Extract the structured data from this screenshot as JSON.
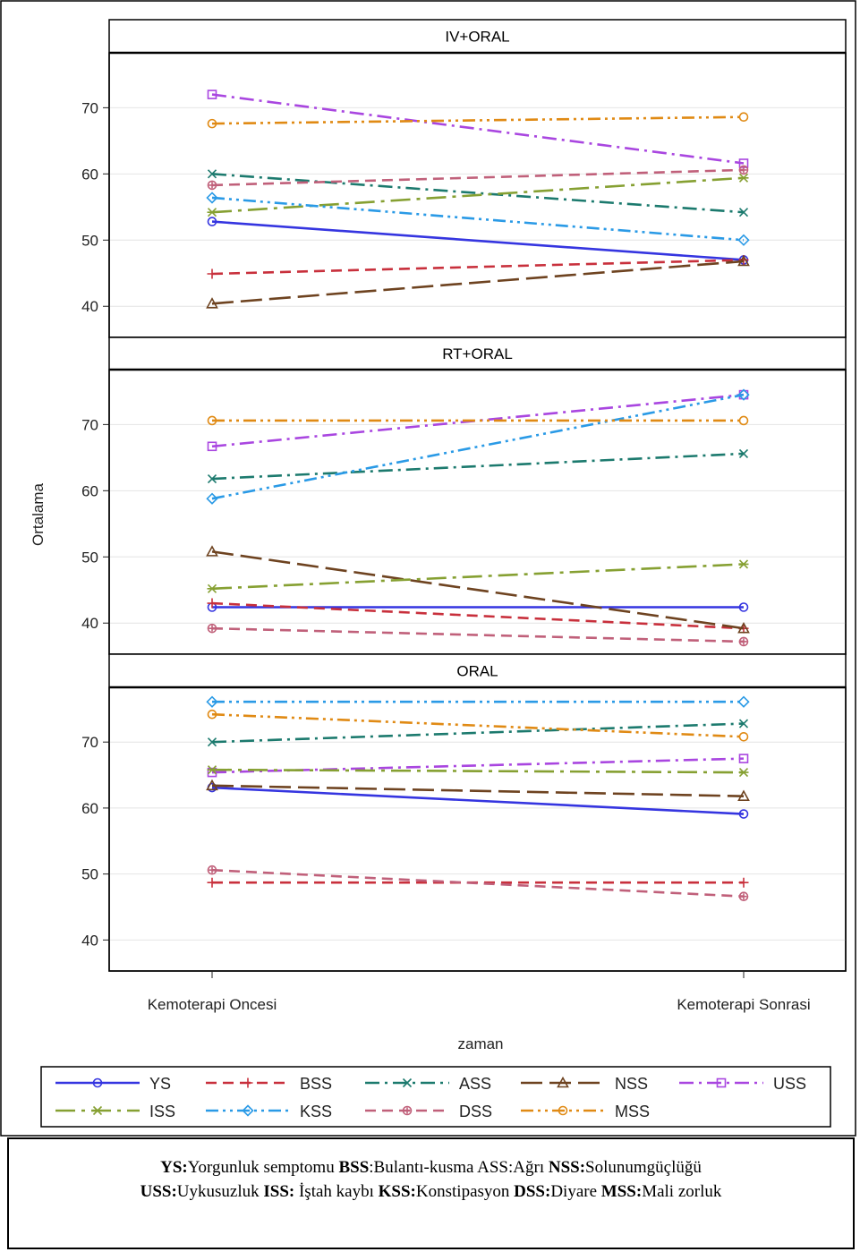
{
  "chart_data": {
    "type": "line",
    "ylabel": "Ortalama",
    "xlabel": "zaman",
    "x": [
      "Kemoterapi Oncesi",
      "Kemoterapi Sonrasi"
    ],
    "yticks": [
      40,
      50,
      60,
      70
    ],
    "grid": true,
    "legend_position": "bottom",
    "panels": [
      {
        "title": "IV+ORAL",
        "ylim": [
          35.3,
          78.3
        ],
        "series": [
          {
            "name": "YS",
            "values": [
              52.8,
              47.0
            ]
          },
          {
            "name": "BSS",
            "values": [
              44.9,
              47.0
            ]
          },
          {
            "name": "ASS",
            "values": [
              60.0,
              54.2
            ]
          },
          {
            "name": "NSS",
            "values": [
              40.4,
              46.8
            ]
          },
          {
            "name": "USS",
            "values": [
              72.0,
              61.6
            ]
          },
          {
            "name": "ISS",
            "values": [
              54.2,
              59.4
            ]
          },
          {
            "name": "KSS",
            "values": [
              56.4,
              50.0
            ]
          },
          {
            "name": "DSS",
            "values": [
              58.3,
              60.6
            ]
          },
          {
            "name": "MSS",
            "values": [
              67.6,
              68.6
            ]
          }
        ]
      },
      {
        "title": "RT+ORAL",
        "ylim": [
          35.3,
          78.3
        ],
        "series": [
          {
            "name": "YS",
            "values": [
              42.4,
              42.4
            ]
          },
          {
            "name": "BSS",
            "values": [
              43.0,
              39.2
            ]
          },
          {
            "name": "ASS",
            "values": [
              61.8,
              65.6
            ]
          },
          {
            "name": "NSS",
            "values": [
              50.8,
              39.2
            ]
          },
          {
            "name": "USS",
            "values": [
              66.7,
              74.5
            ]
          },
          {
            "name": "ISS",
            "values": [
              45.2,
              48.9
            ]
          },
          {
            "name": "KSS",
            "values": [
              58.8,
              74.5
            ]
          },
          {
            "name": "DSS",
            "values": [
              39.2,
              37.2
            ]
          },
          {
            "name": "MSS",
            "values": [
              70.6,
              70.6
            ]
          }
        ]
      },
      {
        "title": "ORAL",
        "ylim": [
          35.3,
          78.3
        ],
        "series": [
          {
            "name": "YS",
            "values": [
              63.1,
              59.1
            ]
          },
          {
            "name": "BSS",
            "values": [
              48.7,
              48.7
            ]
          },
          {
            "name": "ASS",
            "values": [
              70.0,
              72.8
            ]
          },
          {
            "name": "NSS",
            "values": [
              63.4,
              61.8
            ]
          },
          {
            "name": "USS",
            "values": [
              65.4,
              67.5
            ]
          },
          {
            "name": "ISS",
            "values": [
              65.8,
              65.4
            ]
          },
          {
            "name": "KSS",
            "values": [
              76.1,
              76.1
            ]
          },
          {
            "name": "DSS",
            "values": [
              50.6,
              46.6
            ]
          },
          {
            "name": "MSS",
            "values": [
              74.2,
              70.8
            ]
          }
        ]
      }
    ],
    "series_styles": {
      "YS": {
        "color": "#3535e0",
        "marker": "circle",
        "dash": "solid"
      },
      "BSS": {
        "color": "#c8303c",
        "marker": "plus",
        "dash": "dash"
      },
      "ASS": {
        "color": "#1c7a6e",
        "marker": "x",
        "dash": "dashdot"
      },
      "NSS": {
        "color": "#6e4320",
        "marker": "triangle",
        "dash": "longdash"
      },
      "USS": {
        "color": "#a946e0",
        "marker": "square",
        "dash": "dashdot"
      },
      "ISS": {
        "color": "#86a032",
        "marker": "star",
        "dash": "longdashdot"
      },
      "KSS": {
        "color": "#2a9ae6",
        "marker": "diamond",
        "dash": "dashdotdot"
      },
      "DSS": {
        "color": "#c0607a",
        "marker": "circleplus",
        "dash": "dash"
      },
      "MSS": {
        "color": "#e08a14",
        "marker": "circle",
        "dash": "dashdotdot"
      }
    },
    "legend_order": [
      "YS",
      "BSS",
      "ASS",
      "NSS",
      "USS",
      "ISS",
      "KSS",
      "DSS",
      "MSS"
    ]
  },
  "caption": {
    "line1": [
      {
        "b": "YS:",
        "t": "Yorgunluk semptomu  "
      },
      {
        "b": "BSS",
        "t": ":Bulantı-kusma  ASS:Ağrı  "
      },
      {
        "b": "NSS:",
        "t": "Solunumgüçlüğü"
      }
    ],
    "line2": [
      {
        "b": "USS:",
        "t": "Uykusuzluk  "
      },
      {
        "b": "ISS:",
        "t": " İştah kaybı "
      },
      {
        "b": "KSS:",
        "t": "Konstipasyon "
      },
      {
        "b": "DSS:",
        "t": "Diyare  "
      },
      {
        "b": "MSS:",
        "t": "Mali zorluk"
      }
    ]
  }
}
